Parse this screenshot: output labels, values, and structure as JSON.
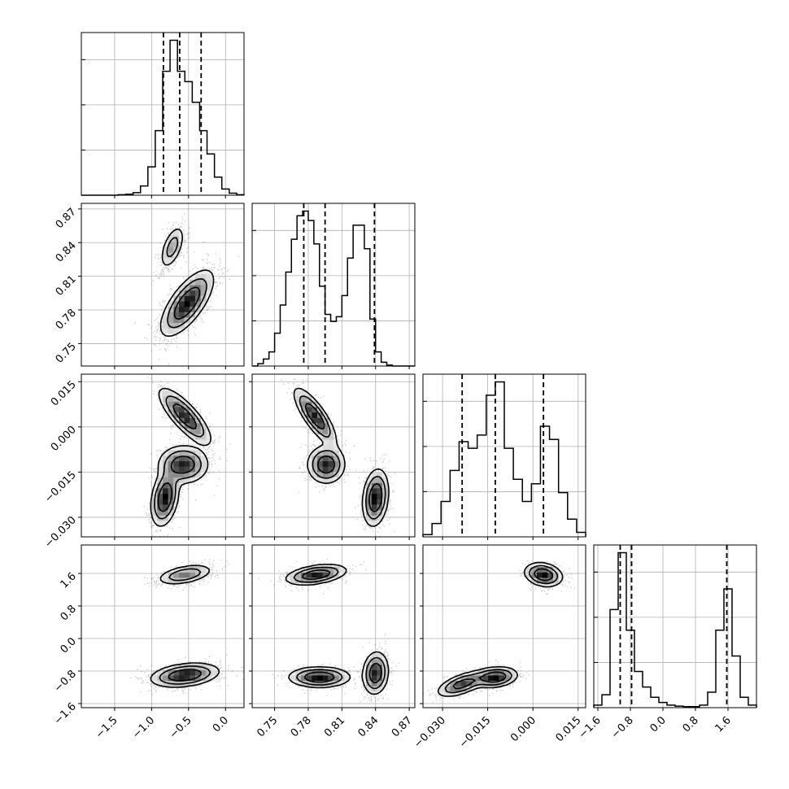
{
  "chart_data": {
    "type": "corner",
    "parameters": [
      {
        "range": [
          -1.95,
          0.25
        ],
        "ticks": [
          -1.5,
          -1.0,
          -0.5,
          0.0
        ],
        "tick_labels": [
          "−1.5",
          "−1.0",
          "−0.5",
          "0.0"
        ],
        "quantiles": [
          -0.84,
          -0.62,
          -0.33
        ]
      },
      {
        "range": [
          0.73,
          0.875
        ],
        "ticks": [
          0.75,
          0.78,
          0.81,
          0.84,
          0.87
        ],
        "tick_labels": [
          "0.75",
          "0.78",
          "0.81",
          "0.84",
          "0.87"
        ],
        "quantiles": [
          0.776,
          0.795,
          0.839
        ]
      },
      {
        "range": [
          -0.0365,
          0.0175
        ],
        "ticks": [
          -0.03,
          -0.015,
          0.0,
          0.015
        ],
        "tick_labels": [
          "−0.030",
          "−0.015",
          "0.000",
          "0.015"
        ],
        "quantiles": [
          -0.0235,
          -0.0125,
          0.0035
        ]
      },
      {
        "range": [
          -1.7,
          2.3
        ],
        "ticks": [
          -1.6,
          -0.8,
          0.0,
          0.8,
          1.6
        ],
        "tick_labels": [
          "−1.6",
          "−0.8",
          "0.0",
          "0.8",
          "1.6"
        ],
        "quantiles": [
          -1.05,
          -0.77,
          1.57
        ]
      }
    ],
    "histograms": [
      {
        "bin_edges": [
          -1.95,
          -1.85,
          -1.75,
          -1.65,
          -1.55,
          -1.45,
          -1.35,
          -1.25,
          -1.15,
          -1.05,
          -0.95,
          -0.85,
          -0.75,
          -0.65,
          -0.55,
          -0.45,
          -0.35,
          -0.25,
          -0.15,
          -0.05,
          0.05,
          0.15,
          0.25
        ],
        "counts": [
          0,
          0,
          0,
          0,
          0,
          1,
          2,
          5,
          18,
          55,
          125,
          240,
          300,
          240,
          220,
          180,
          125,
          80,
          35,
          12,
          4,
          1
        ]
      },
      {
        "bin_edges": [
          0.73,
          0.735,
          0.74,
          0.745,
          0.75,
          0.755,
          0.76,
          0.765,
          0.77,
          0.775,
          0.78,
          0.785,
          0.79,
          0.795,
          0.8,
          0.805,
          0.81,
          0.815,
          0.82,
          0.825,
          0.83,
          0.835,
          0.84,
          0.845,
          0.85,
          0.855,
          0.86,
          0.865,
          0.87,
          0.875
        ],
        "counts": [
          0,
          5,
          15,
          30,
          70,
          130,
          200,
          270,
          320,
          330,
          310,
          260,
          170,
          110,
          95,
          105,
          150,
          230,
          300,
          300,
          250,
          100,
          30,
          8,
          2,
          0,
          0,
          0,
          0
        ]
      },
      {
        "bin_edges": [
          -0.0365,
          -0.0335,
          -0.0305,
          -0.0275,
          -0.0245,
          -0.0215,
          -0.0185,
          -0.0155,
          -0.0125,
          -0.0095,
          -0.0065,
          -0.0035,
          -0.0005,
          0.0025,
          0.0055,
          0.0085,
          0.0115,
          0.0145,
          0.0175
        ],
        "counts": [
          5,
          30,
          80,
          150,
          215,
          200,
          230,
          320,
          350,
          200,
          130,
          80,
          120,
          250,
          220,
          100,
          40,
          10
        ]
      },
      {
        "bin_edges": [
          -1.7,
          -1.5,
          -1.3,
          -1.1,
          -0.9,
          -0.7,
          -0.5,
          -0.3,
          -0.1,
          0.1,
          0.3,
          0.5,
          0.7,
          0.9,
          1.1,
          1.3,
          1.5,
          1.7,
          1.9,
          2.1,
          2.3
        ],
        "counts": [
          5,
          25,
          190,
          300,
          150,
          70,
          40,
          20,
          10,
          5,
          3,
          2,
          2,
          5,
          30,
          150,
          230,
          100,
          20,
          5
        ]
      }
    ],
    "blobs": {
      "0_1": [
        {
          "cx": -0.72,
          "cy": 0.836,
          "sx": 0.08,
          "sy": 0.0095,
          "rho": 0.55,
          "w": 1.0
        },
        {
          "cx": -0.52,
          "cy": 0.786,
          "sx": 0.17,
          "sy": 0.014,
          "rho": 0.7,
          "w": 2.2
        }
      ],
      "0_2": [
        {
          "cx": -0.55,
          "cy": 0.0035,
          "sx": 0.17,
          "sy": 0.0045,
          "rho": -0.8,
          "w": 1.0
        },
        {
          "cx": -0.57,
          "cy": -0.0125,
          "sx": 0.16,
          "sy": 0.003,
          "rho": 0.0,
          "w": 1.0
        },
        {
          "cx": -0.82,
          "cy": -0.0235,
          "sx": 0.09,
          "sy": 0.0045,
          "rho": 0.3,
          "w": 1.1
        }
      ],
      "0_3": [
        {
          "cx": -0.55,
          "cy": 1.57,
          "sx": 0.18,
          "sy": 0.12,
          "rho": 0.45,
          "w": 0.75
        },
        {
          "cx": -0.55,
          "cy": -0.9,
          "sx": 0.22,
          "sy": 0.14,
          "rho": 0.3,
          "w": 1.25
        }
      ],
      "1_2": [
        {
          "cx": 0.786,
          "cy": 0.0035,
          "sx": 0.009,
          "sy": 0.0045,
          "rho": -0.8,
          "w": 1.0
        },
        {
          "cx": 0.796,
          "cy": -0.0125,
          "sx": 0.008,
          "sy": 0.003,
          "rho": 0.0,
          "w": 1.0
        },
        {
          "cx": 0.84,
          "cy": -0.0235,
          "sx": 0.0055,
          "sy": 0.0045,
          "rho": 0.2,
          "w": 1.1
        }
      ],
      "1_3": [
        {
          "cx": 0.787,
          "cy": 1.57,
          "sx": 0.013,
          "sy": 0.12,
          "rho": 0.4,
          "w": 0.75
        },
        {
          "cx": 0.79,
          "cy": -0.95,
          "sx": 0.013,
          "sy": 0.12,
          "rho": 0.0,
          "w": 0.8
        },
        {
          "cx": 0.84,
          "cy": -0.85,
          "sx": 0.0055,
          "sy": 0.25,
          "rho": 0.1,
          "w": 0.75
        }
      ],
      "2_3": [
        {
          "cx": 0.0035,
          "cy": 1.57,
          "sx": 0.003,
          "sy": 0.14,
          "rho": -0.2,
          "w": 0.75
        },
        {
          "cx": -0.0235,
          "cy": -1.12,
          "sx": 0.004,
          "sy": 0.15,
          "rho": 0.6,
          "w": 0.6
        },
        {
          "cx": -0.0125,
          "cy": -0.95,
          "sx": 0.0035,
          "sy": 0.12,
          "rho": 0.2,
          "w": 0.75
        }
      ]
    }
  }
}
